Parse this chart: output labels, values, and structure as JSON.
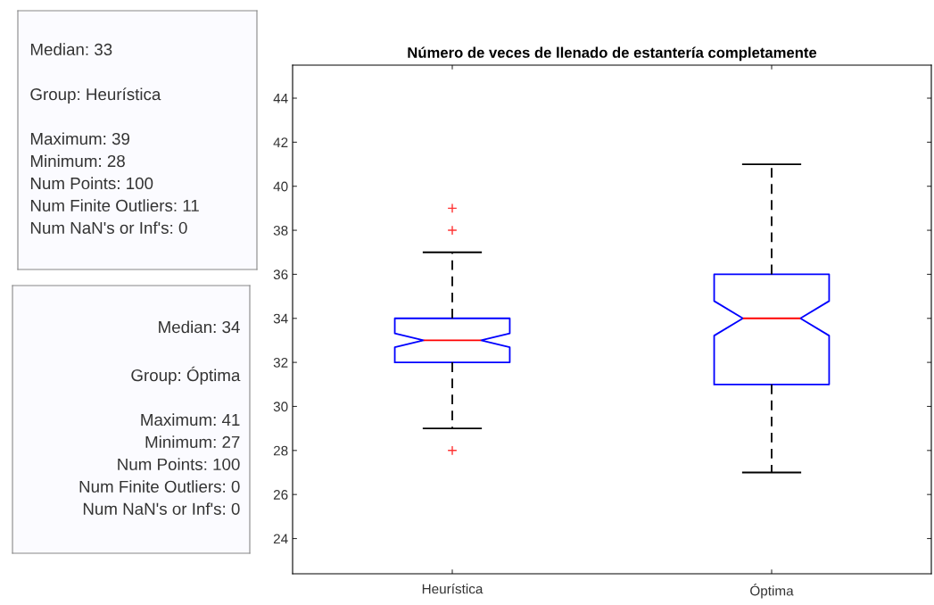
{
  "chart_data": {
    "type": "box",
    "title": "Número de veces de llenado de estantería completamente",
    "categories": [
      "Heurística",
      "Óptima"
    ],
    "boxes": [
      {
        "low": 29,
        "q1": 32,
        "median": 33,
        "q3": 34,
        "high": 37,
        "outliers": [
          39,
          38,
          28
        ]
      },
      {
        "low": 27,
        "q1": 31,
        "median": 34,
        "q3": 36,
        "high": 41
      }
    ],
    "ylim": [
      22.4,
      45.5
    ],
    "yticks": [
      24,
      26,
      28,
      30,
      32,
      34,
      36,
      38,
      40,
      42,
      44
    ],
    "grid": false,
    "legend": false,
    "annotations": [
      "Median: 33\n\nGroup: Heurística\n\nMaximum: 39\nMinimum: 28\nNum Points: 100\nNum Finite Outliers: 11\nNum NaN's or Inf's: 0",
      "Median: 34\n\nGroup: Óptima\n\nMaximum: 41\nMinimum: 27\nNum Points: 100\nNum Finite Outliers: 0\nNum NaN's or Inf's: 0"
    ]
  }
}
